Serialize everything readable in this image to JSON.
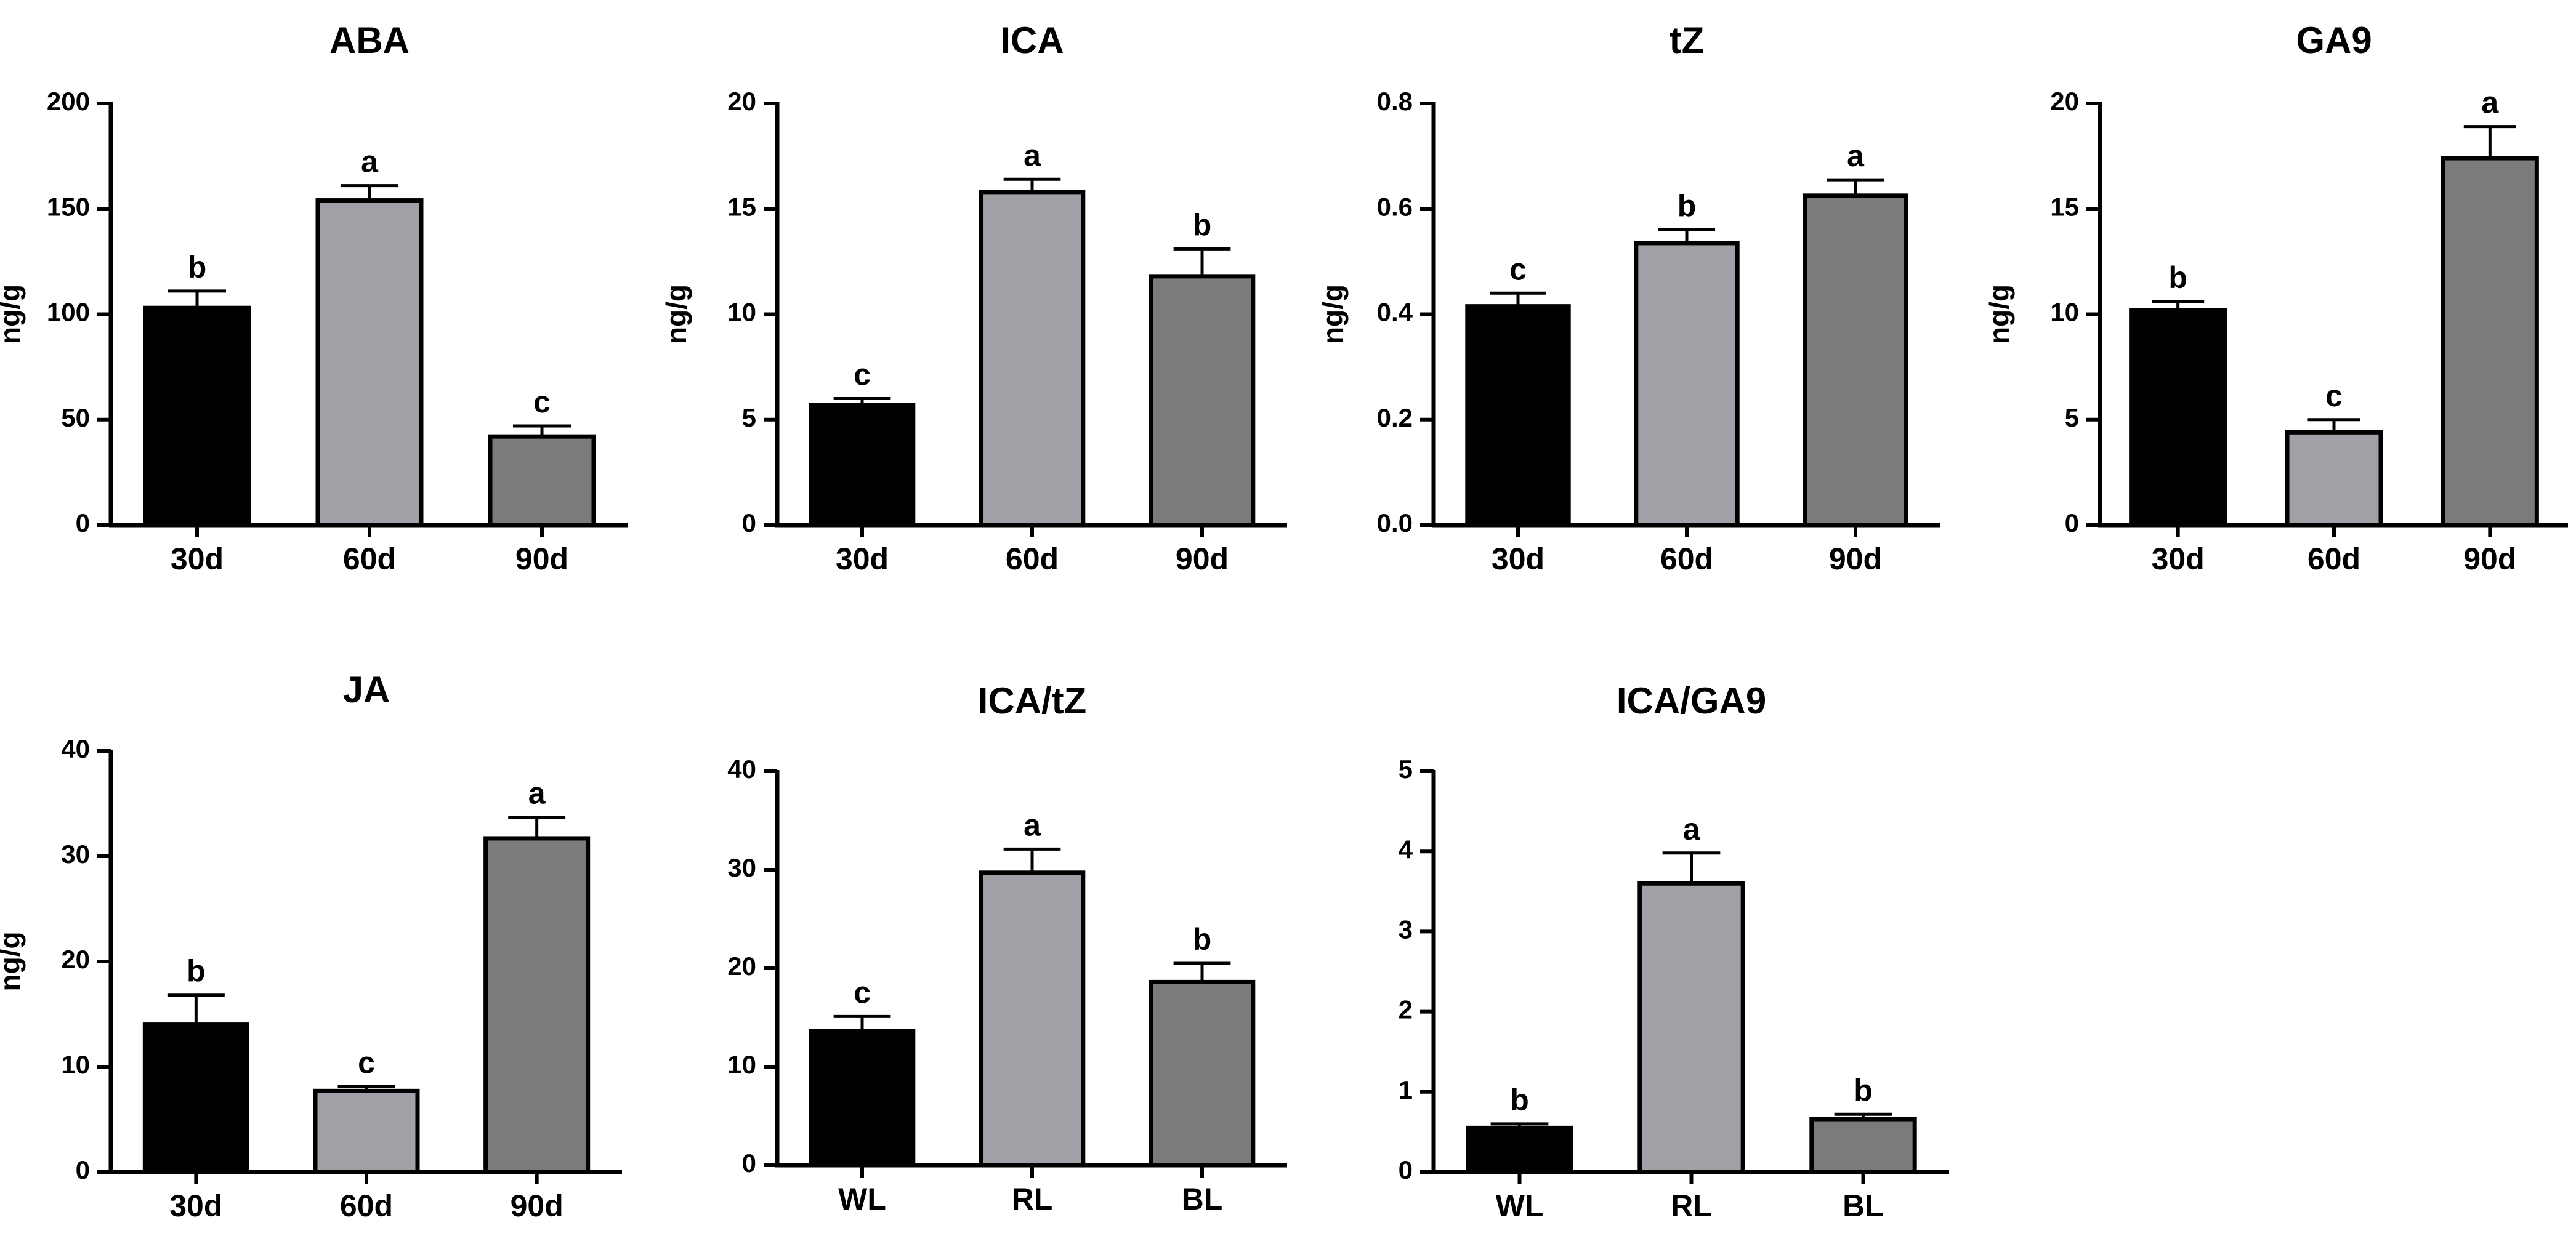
{
  "figure": {
    "background": "#ffffff"
  },
  "bar_colors": [
    "#000000",
    "#a0a0a6",
    "#7b7b7b"
  ],
  "chart_data": [
    {
      "type": "bar",
      "title": "ABA",
      "ylabel": "ng/g",
      "xlabel": "",
      "categories": [
        "30d",
        "60d",
        "90d"
      ],
      "values": [
        103,
        154,
        42
      ],
      "errors": [
        8,
        7,
        5
      ],
      "significance": [
        "b",
        "a",
        "c"
      ],
      "ylim": [
        0,
        200
      ],
      "yticks": [
        0,
        50,
        100,
        150,
        200
      ],
      "ytick_labels": [
        "0",
        "50",
        "100",
        "150",
        "200"
      ]
    },
    {
      "type": "bar",
      "title": "ICA",
      "ylabel": "ng/g",
      "xlabel": "",
      "categories": [
        "30d",
        "60d",
        "90d"
      ],
      "values": [
        5.7,
        15.8,
        11.8
      ],
      "errors": [
        0.3,
        0.6,
        1.3
      ],
      "significance": [
        "c",
        "a",
        "b"
      ],
      "ylim": [
        0,
        20
      ],
      "yticks": [
        0,
        5,
        10,
        15,
        20
      ],
      "ytick_labels": [
        "0",
        "5",
        "10",
        "15",
        "20"
      ]
    },
    {
      "type": "bar",
      "title": "tZ",
      "ylabel": "ng/g",
      "xlabel": "",
      "categories": [
        "30d",
        "60d",
        "90d"
      ],
      "values": [
        0.415,
        0.535,
        0.625
      ],
      "errors": [
        0.025,
        0.025,
        0.03
      ],
      "significance": [
        "c",
        "b",
        "a"
      ],
      "ylim": [
        0,
        0.8
      ],
      "yticks": [
        0,
        0.2,
        0.4,
        0.6,
        0.8
      ],
      "ytick_labels": [
        "0.0",
        "0.2",
        "0.4",
        "0.6",
        "0.8"
      ]
    },
    {
      "type": "bar",
      "title": "GA9",
      "ylabel": "ng/g",
      "xlabel": "",
      "categories": [
        "30d",
        "60d",
        "90d"
      ],
      "values": [
        10.2,
        4.4,
        17.4
      ],
      "errors": [
        0.4,
        0.6,
        1.5
      ],
      "significance": [
        "b",
        "c",
        "a"
      ],
      "ylim": [
        0,
        20
      ],
      "yticks": [
        0,
        5,
        10,
        15,
        20
      ],
      "ytick_labels": [
        "0",
        "5",
        "10",
        "15",
        "20"
      ]
    },
    {
      "type": "bar",
      "title": "JA",
      "ylabel": "ng/g",
      "xlabel": "",
      "categories": [
        "30d",
        "60d",
        "90d"
      ],
      "values": [
        14,
        7.7,
        31.7
      ],
      "errors": [
        2.8,
        0.4,
        2
      ],
      "significance": [
        "b",
        "c",
        "a"
      ],
      "ylim": [
        0,
        40
      ],
      "yticks": [
        0,
        10,
        20,
        30,
        40
      ],
      "ytick_labels": [
        "0",
        "10",
        "20",
        "30",
        "40"
      ]
    },
    {
      "type": "bar",
      "title": "ICA/tZ",
      "ylabel": "",
      "xlabel": "",
      "categories": [
        "WL",
        "RL",
        "BL"
      ],
      "values": [
        13.6,
        29.7,
        18.6
      ],
      "errors": [
        1.5,
        2.4,
        1.9
      ],
      "significance": [
        "c",
        "a",
        "b"
      ],
      "ylim": [
        0,
        40
      ],
      "yticks": [
        0,
        10,
        20,
        30,
        40
      ],
      "ytick_labels": [
        "0",
        "10",
        "20",
        "30",
        "40"
      ]
    },
    {
      "type": "bar",
      "title": "ICA/GA9",
      "ylabel": "",
      "xlabel": "",
      "categories": [
        "WL",
        "RL",
        "BL"
      ],
      "values": [
        0.55,
        3.6,
        0.66
      ],
      "errors": [
        0.05,
        0.38,
        0.06
      ],
      "significance": [
        "b",
        "a",
        "b"
      ],
      "ylim": [
        0,
        5
      ],
      "yticks": [
        0,
        1,
        2,
        3,
        4,
        5
      ],
      "ytick_labels": [
        "0",
        "1",
        "2",
        "3",
        "4",
        "5"
      ]
    }
  ]
}
